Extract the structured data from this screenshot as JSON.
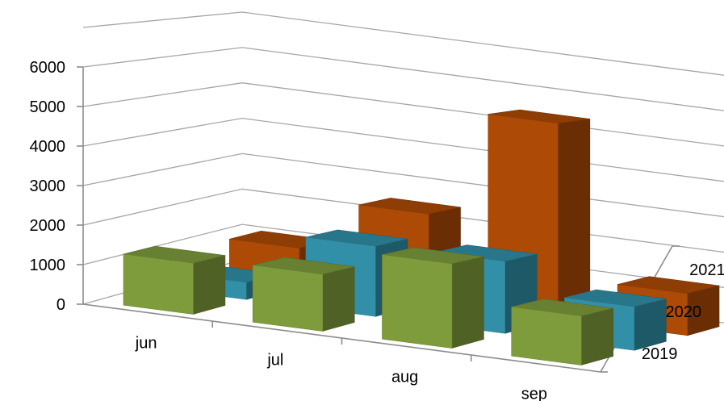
{
  "chart_data": {
    "type": "bar",
    "projection": "3d-column",
    "categories": [
      "jun",
      "jul",
      "aug",
      "sep"
    ],
    "series": [
      {
        "name": "2019",
        "values": [
          1300,
          1450,
          2150,
          1250
        ],
        "color": "#7f9c3c"
      },
      {
        "name": "2020",
        "values": [
          450,
          1850,
          1900,
          1150
        ],
        "color": "#3190a8"
      },
      {
        "name": "2021",
        "values": [
          1000,
          2400,
          5350,
          1150
        ],
        "color": "#ad4a06"
      }
    ],
    "y_ticks": [
      "0",
      "1000",
      "2000",
      "3000",
      "4000",
      "5000",
      "6000"
    ],
    "ylim": [
      0,
      7000
    ],
    "grid": true,
    "legend": "none",
    "title": "",
    "xlabel": "",
    "ylabel": ""
  }
}
